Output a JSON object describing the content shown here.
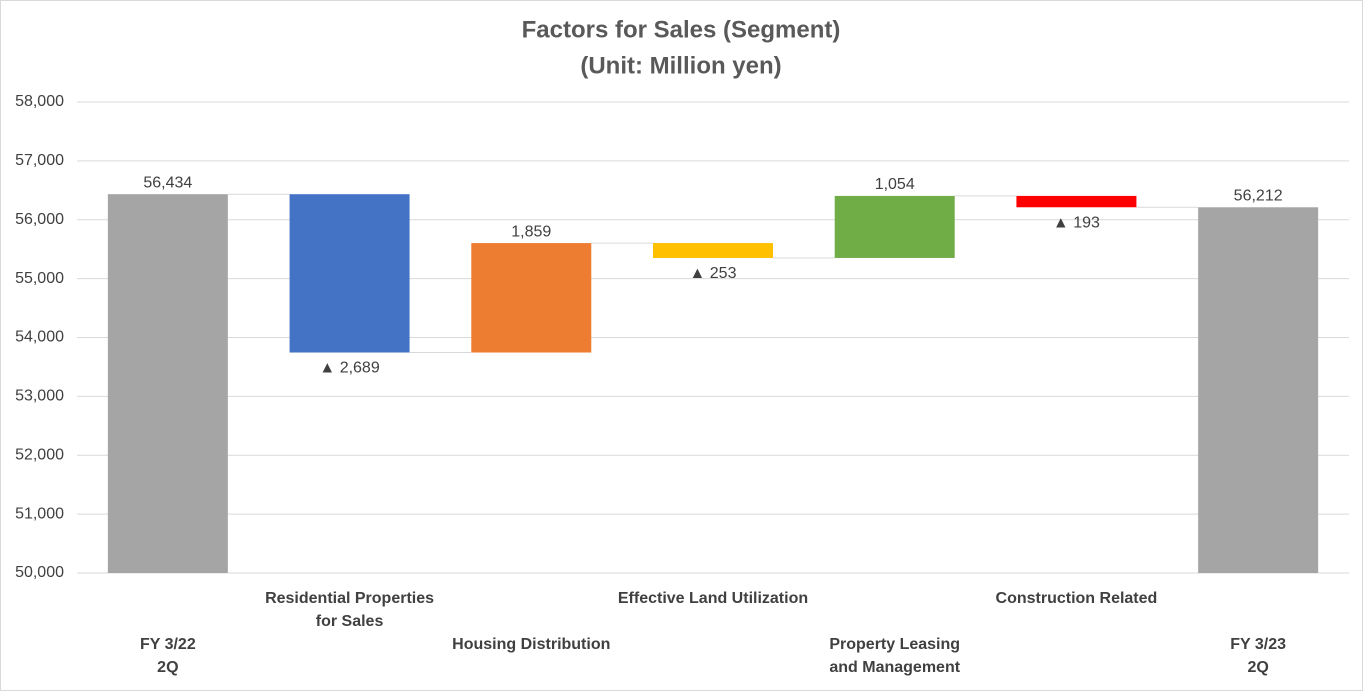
{
  "chart_data": {
    "type": "waterfall",
    "title": "Factors for Sales (Segment)",
    "subtitle": "(Unit: Million yen)",
    "categories": [
      "FY 3/22\n2Q",
      "Residential Properties\nfor Sales",
      "Housing Distribution",
      "Effective Land Utilization",
      "Property Leasing\nand Management",
      "Construction Related",
      "FY 3/23\n2Q"
    ],
    "measures": [
      "absolute",
      "relative",
      "relative",
      "relative",
      "relative",
      "relative",
      "absolute"
    ],
    "values": [
      56434,
      -2689,
      1859,
      -253,
      1054,
      -193,
      56212
    ],
    "value_labels": [
      "56,434",
      "▲ 2,689",
      "1,859",
      "▲ 253",
      "1,054",
      "▲ 193",
      "56,212"
    ],
    "colors": [
      "#a5a5a5",
      "#4472c4",
      "#ed7d31",
      "#ffc000",
      "#70ad47",
      "#ff0000",
      "#a5a5a5"
    ],
    "ylim": [
      50000,
      58000
    ],
    "yticks": [
      {
        "value": 50000,
        "label": "50,000"
      },
      {
        "value": 51000,
        "label": "51,000"
      },
      {
        "value": 52000,
        "label": "52,000"
      },
      {
        "value": 53000,
        "label": "53,000"
      },
      {
        "value": 54000,
        "label": "54,000"
      },
      {
        "value": 55000,
        "label": "55,000"
      },
      {
        "value": 56000,
        "label": "56,000"
      },
      {
        "value": 57000,
        "label": "57,000"
      },
      {
        "value": 58000,
        "label": "58,000"
      }
    ],
    "grid": true
  }
}
